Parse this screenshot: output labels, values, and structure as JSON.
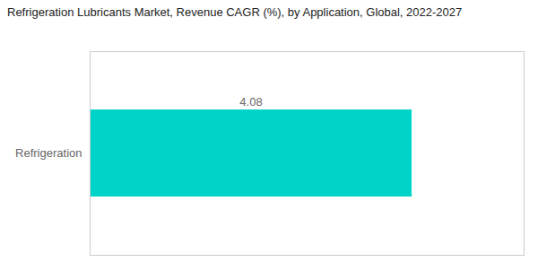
{
  "chart_data": {
    "type": "bar",
    "orientation": "horizontal",
    "title": "Refrigeration Lubricants Market, Revenue CAGR (%), by Application, Global, 2022-2027",
    "categories": [
      "Refrigeration"
    ],
    "values": [
      4.08
    ],
    "color": "#00D4C8",
    "xlim": [
      0,
      5.5
    ],
    "data_labels": true,
    "tick_labels": "y",
    "grid": false
  }
}
